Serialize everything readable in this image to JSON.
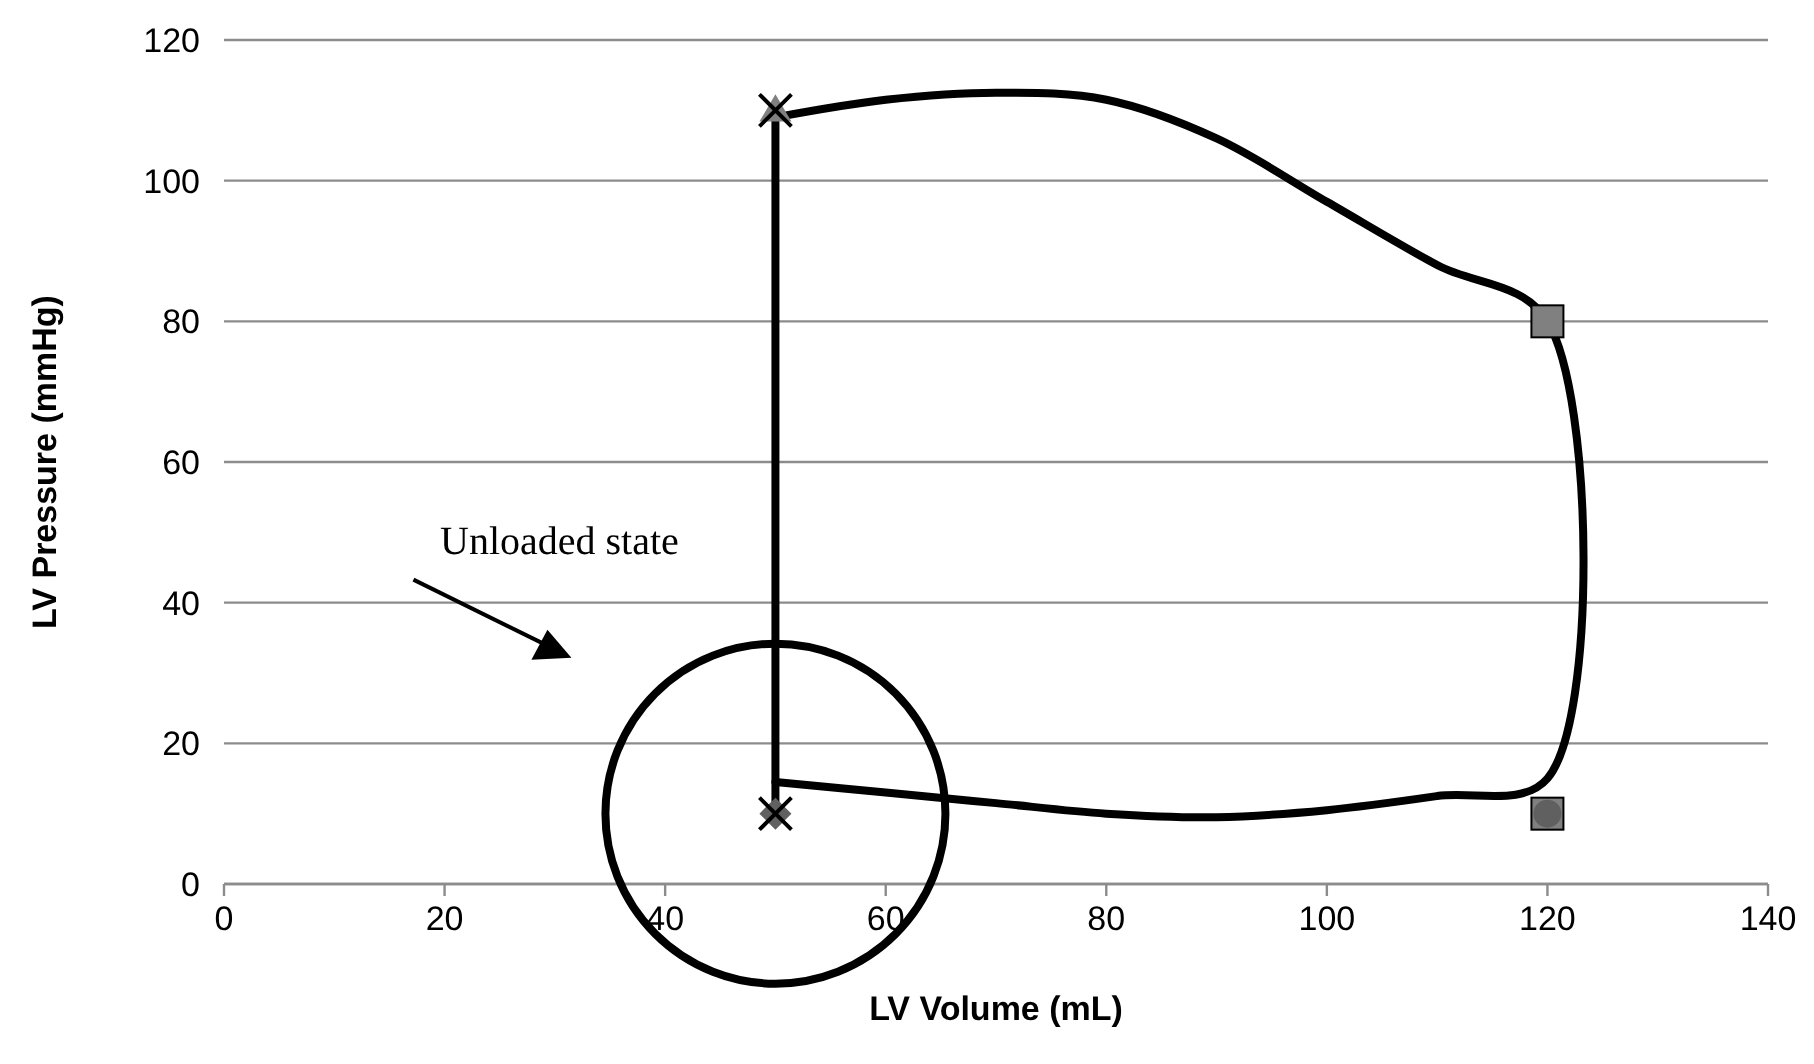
{
  "chart_data": {
    "type": "line",
    "xlabel": "LV Volume (mL)",
    "ylabel": "LV Pressure (mmHg)",
    "xlim": [
      0,
      140
    ],
    "ylim": [
      0,
      120
    ],
    "xticks": [
      0,
      20,
      40,
      60,
      80,
      100,
      120,
      140
    ],
    "yticks": [
      0,
      20,
      40,
      60,
      80,
      100,
      120
    ],
    "grid": "y",
    "line_style": "solid",
    "series": [
      {
        "color": "#000000",
        "marker": "none",
        "x": [
          50,
          60,
          70,
          80,
          90,
          100,
          110,
          120,
          120,
          110,
          100,
          90,
          80,
          70,
          60,
          50
        ],
        "values": [
          109,
          111.5,
          112.5,
          111.5,
          106,
          97,
          88,
          80,
          15,
          12.5,
          10.5,
          9.5,
          10,
          11.5,
          13,
          14.5
        ]
      },
      {
        "color": "#000000",
        "x": [
          50,
          50
        ],
        "values": [
          10,
          110
        ]
      },
      {
        "type": "scatter",
        "marker": "square",
        "color": "#808080",
        "x": [
          120,
          120
        ],
        "values": [
          80,
          10
        ]
      },
      {
        "type": "scatter",
        "marker": "triangle",
        "color": "#808080",
        "x": [
          50
        ],
        "values": [
          110
        ]
      },
      {
        "type": "scatter",
        "marker": "diamond",
        "color": "#606060",
        "x": [
          50
        ],
        "values": [
          10
        ]
      },
      {
        "type": "scatter",
        "marker": "circle",
        "color": "#606060",
        "x": [
          120
        ],
        "values": [
          10
        ]
      },
      {
        "type": "scatter",
        "marker": "cross",
        "color": "#000000",
        "x": [
          50,
          50
        ],
        "values": [
          110,
          10
        ]
      }
    ],
    "annotations": [
      "Unloaded state"
    ]
  }
}
